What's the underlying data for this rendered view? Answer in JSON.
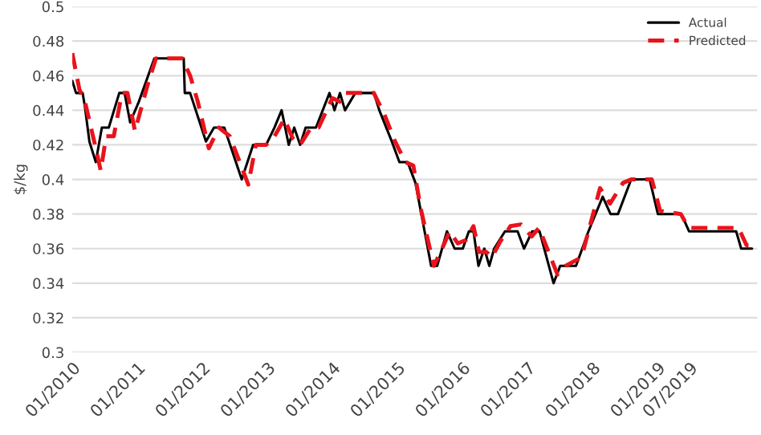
{
  "chart_data": {
    "type": "line",
    "ylabel": "$/kg",
    "xlim": [
      "2010-01-01",
      "2020-07-15"
    ],
    "xticks": [
      {
        "value": "2010-01-01",
        "label": "01/2010"
      },
      {
        "value": "2011-01-01",
        "label": "01/2011"
      },
      {
        "value": "2012-01-01",
        "label": "01/2012"
      },
      {
        "value": "2013-01-01",
        "label": "01/2013"
      },
      {
        "value": "2014-01-01",
        "label": "01/2014"
      },
      {
        "value": "2015-01-01",
        "label": "01/2015"
      },
      {
        "value": "2016-01-01",
        "label": "01/2016"
      },
      {
        "value": "2017-01-01",
        "label": "01/2017"
      },
      {
        "value": "2018-01-01",
        "label": "01/2018"
      },
      {
        "value": "2019-01-01",
        "label": "01/2019"
      },
      {
        "value": "2019-07-01",
        "label": "07/2019"
      }
    ],
    "ylim": [
      0.3,
      0.5
    ],
    "yticks": [
      0.3,
      0.32,
      0.34,
      0.36,
      0.38,
      0.4,
      0.42,
      0.44,
      0.46,
      0.48,
      0.5
    ],
    "grid": "y",
    "legend": "top right",
    "series": [
      {
        "name": "Actual",
        "color": "#000000",
        "line_style": "solid",
        "x": [
          "2010-01-01",
          "2010-01-22",
          "2010-02-28",
          "2010-03-13",
          "2010-04-07",
          "2010-05-13",
          "2010-06-16",
          "2010-07-25",
          "2010-09-22",
          "2010-10-22",
          "2010-11-22",
          "2011-01-10",
          "2011-04-07",
          "2011-09-19",
          "2011-09-25",
          "2011-10-25",
          "2012-01-22",
          "2012-03-07",
          "2012-05-04",
          "2012-08-10",
          "2012-10-13",
          "2012-12-25",
          "2013-02-10",
          "2013-03-22",
          "2013-05-01",
          "2013-06-01",
          "2013-07-04",
          "2013-08-04",
          "2013-10-01",
          "2013-12-16",
          "2014-01-13",
          "2014-02-13",
          "2014-03-13",
          "2014-05-10",
          "2014-08-22",
          "2014-09-22",
          "2014-12-01",
          "2015-01-13",
          "2015-02-28",
          "2015-04-13",
          "2015-05-16",
          "2015-07-10",
          "2015-08-13",
          "2015-10-07",
          "2015-11-19",
          "2016-01-04",
          "2016-02-07",
          "2016-03-04",
          "2016-04-01",
          "2016-05-04",
          "2016-06-01",
          "2016-06-28",
          "2016-08-28",
          "2016-11-07",
          "2016-12-13",
          "2017-01-28",
          "2017-03-10",
          "2017-05-28",
          "2017-07-04",
          "2017-10-01",
          "2017-12-10",
          "2018-02-28",
          "2018-04-13",
          "2018-05-25",
          "2018-08-07",
          "2018-11-19",
          "2019-01-04",
          "2019-05-16",
          "2019-06-28",
          "2020-03-19",
          "2020-04-16",
          "2020-06-16"
        ],
        "values": [
          0.457,
          0.45,
          0.45,
          0.442,
          0.422,
          0.41,
          0.43,
          0.43,
          0.45,
          0.45,
          0.433,
          0.445,
          0.47,
          0.47,
          0.45,
          0.45,
          0.422,
          0.43,
          0.43,
          0.4,
          0.42,
          0.42,
          0.43,
          0.44,
          0.42,
          0.43,
          0.42,
          0.43,
          0.43,
          0.45,
          0.44,
          0.45,
          0.44,
          0.45,
          0.45,
          0.44,
          0.422,
          0.41,
          0.41,
          0.398,
          0.38,
          0.35,
          0.35,
          0.37,
          0.36,
          0.36,
          0.37,
          0.37,
          0.35,
          0.36,
          0.35,
          0.36,
          0.37,
          0.37,
          0.36,
          0.37,
          0.37,
          0.34,
          0.35,
          0.35,
          0.37,
          0.39,
          0.38,
          0.38,
          0.4,
          0.4,
          0.38,
          0.38,
          0.37,
          0.37,
          0.36,
          0.36
        ]
      },
      {
        "name": "Predicted",
        "color": "#e8141c",
        "line_style": "dashed",
        "x": [
          "2010-01-01",
          "2010-02-10",
          "2010-03-13",
          "2010-05-13",
          "2010-06-10",
          "2010-07-10",
          "2010-08-22",
          "2010-10-07",
          "2010-11-07",
          "2010-12-19",
          "2011-03-01",
          "2011-04-16",
          "2011-09-10",
          "2011-10-25",
          "2011-12-07",
          "2012-02-07",
          "2012-04-04",
          "2012-06-04",
          "2012-09-16",
          "2012-10-28",
          "2012-12-25",
          "2013-02-10",
          "2013-04-07",
          "2013-05-22",
          "2013-07-04",
          "2013-09-04",
          "2013-10-16",
          "2014-01-01",
          "2014-02-13",
          "2014-03-13",
          "2014-08-22",
          "2014-10-19",
          "2014-12-19",
          "2015-02-16",
          "2015-04-01",
          "2015-05-13",
          "2015-07-25",
          "2015-09-10",
          "2015-10-22",
          "2015-12-07",
          "2016-01-22",
          "2016-03-04",
          "2016-04-04",
          "2016-05-16",
          "2016-06-16",
          "2016-08-01",
          "2016-09-28",
          "2016-11-25",
          "2017-01-25",
          "2017-03-07",
          "2017-04-07",
          "2017-06-19",
          "2017-08-04",
          "2017-11-01",
          "2018-02-13",
          "2018-04-10",
          "2018-06-22",
          "2018-08-07",
          "2018-12-01",
          "2019-01-16",
          "2019-05-13",
          "2019-06-25",
          "2020-04-01",
          "2020-05-16",
          "2020-06-19"
        ],
        "values": [
          0.473,
          0.452,
          0.445,
          0.418,
          0.405,
          0.425,
          0.425,
          0.45,
          0.45,
          0.428,
          0.455,
          0.47,
          0.47,
          0.46,
          0.445,
          0.418,
          0.43,
          0.425,
          0.397,
          0.42,
          0.42,
          0.425,
          0.435,
          0.424,
          0.42,
          0.43,
          0.43,
          0.447,
          0.445,
          0.45,
          0.45,
          0.438,
          0.422,
          0.41,
          0.408,
          0.383,
          0.35,
          0.36,
          0.37,
          0.363,
          0.365,
          0.373,
          0.358,
          0.358,
          0.355,
          0.364,
          0.373,
          0.374,
          0.367,
          0.372,
          0.364,
          0.345,
          0.35,
          0.355,
          0.395,
          0.386,
          0.398,
          0.4,
          0.4,
          0.382,
          0.38,
          0.372,
          0.372,
          0.362,
          0.362
        ]
      }
    ]
  }
}
